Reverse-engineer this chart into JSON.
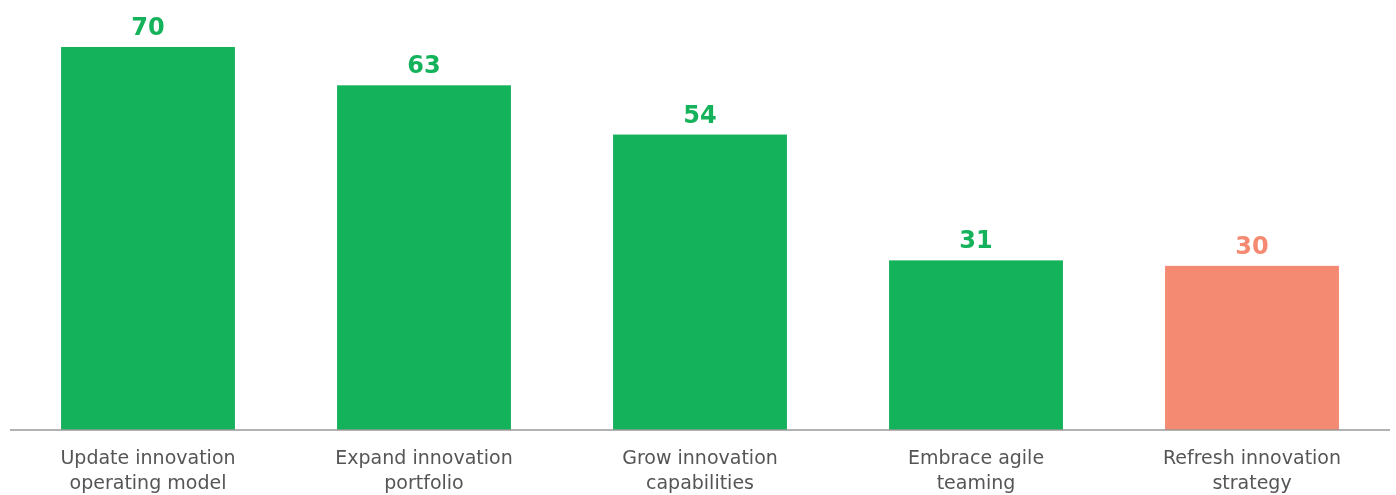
{
  "chart_data": {
    "type": "bar",
    "categories": [
      "Update innovation operating model",
      "Expand innovation portfolio",
      "Grow innovation capabilities",
      "Embrace agile teaming",
      "Refresh innovation strategy"
    ],
    "values": [
      70,
      63,
      54,
      31,
      30
    ],
    "colors": [
      "#14b25a",
      "#14b25a",
      "#14b25a",
      "#14b25a",
      "#f48a72"
    ],
    "data_labels": true
  }
}
